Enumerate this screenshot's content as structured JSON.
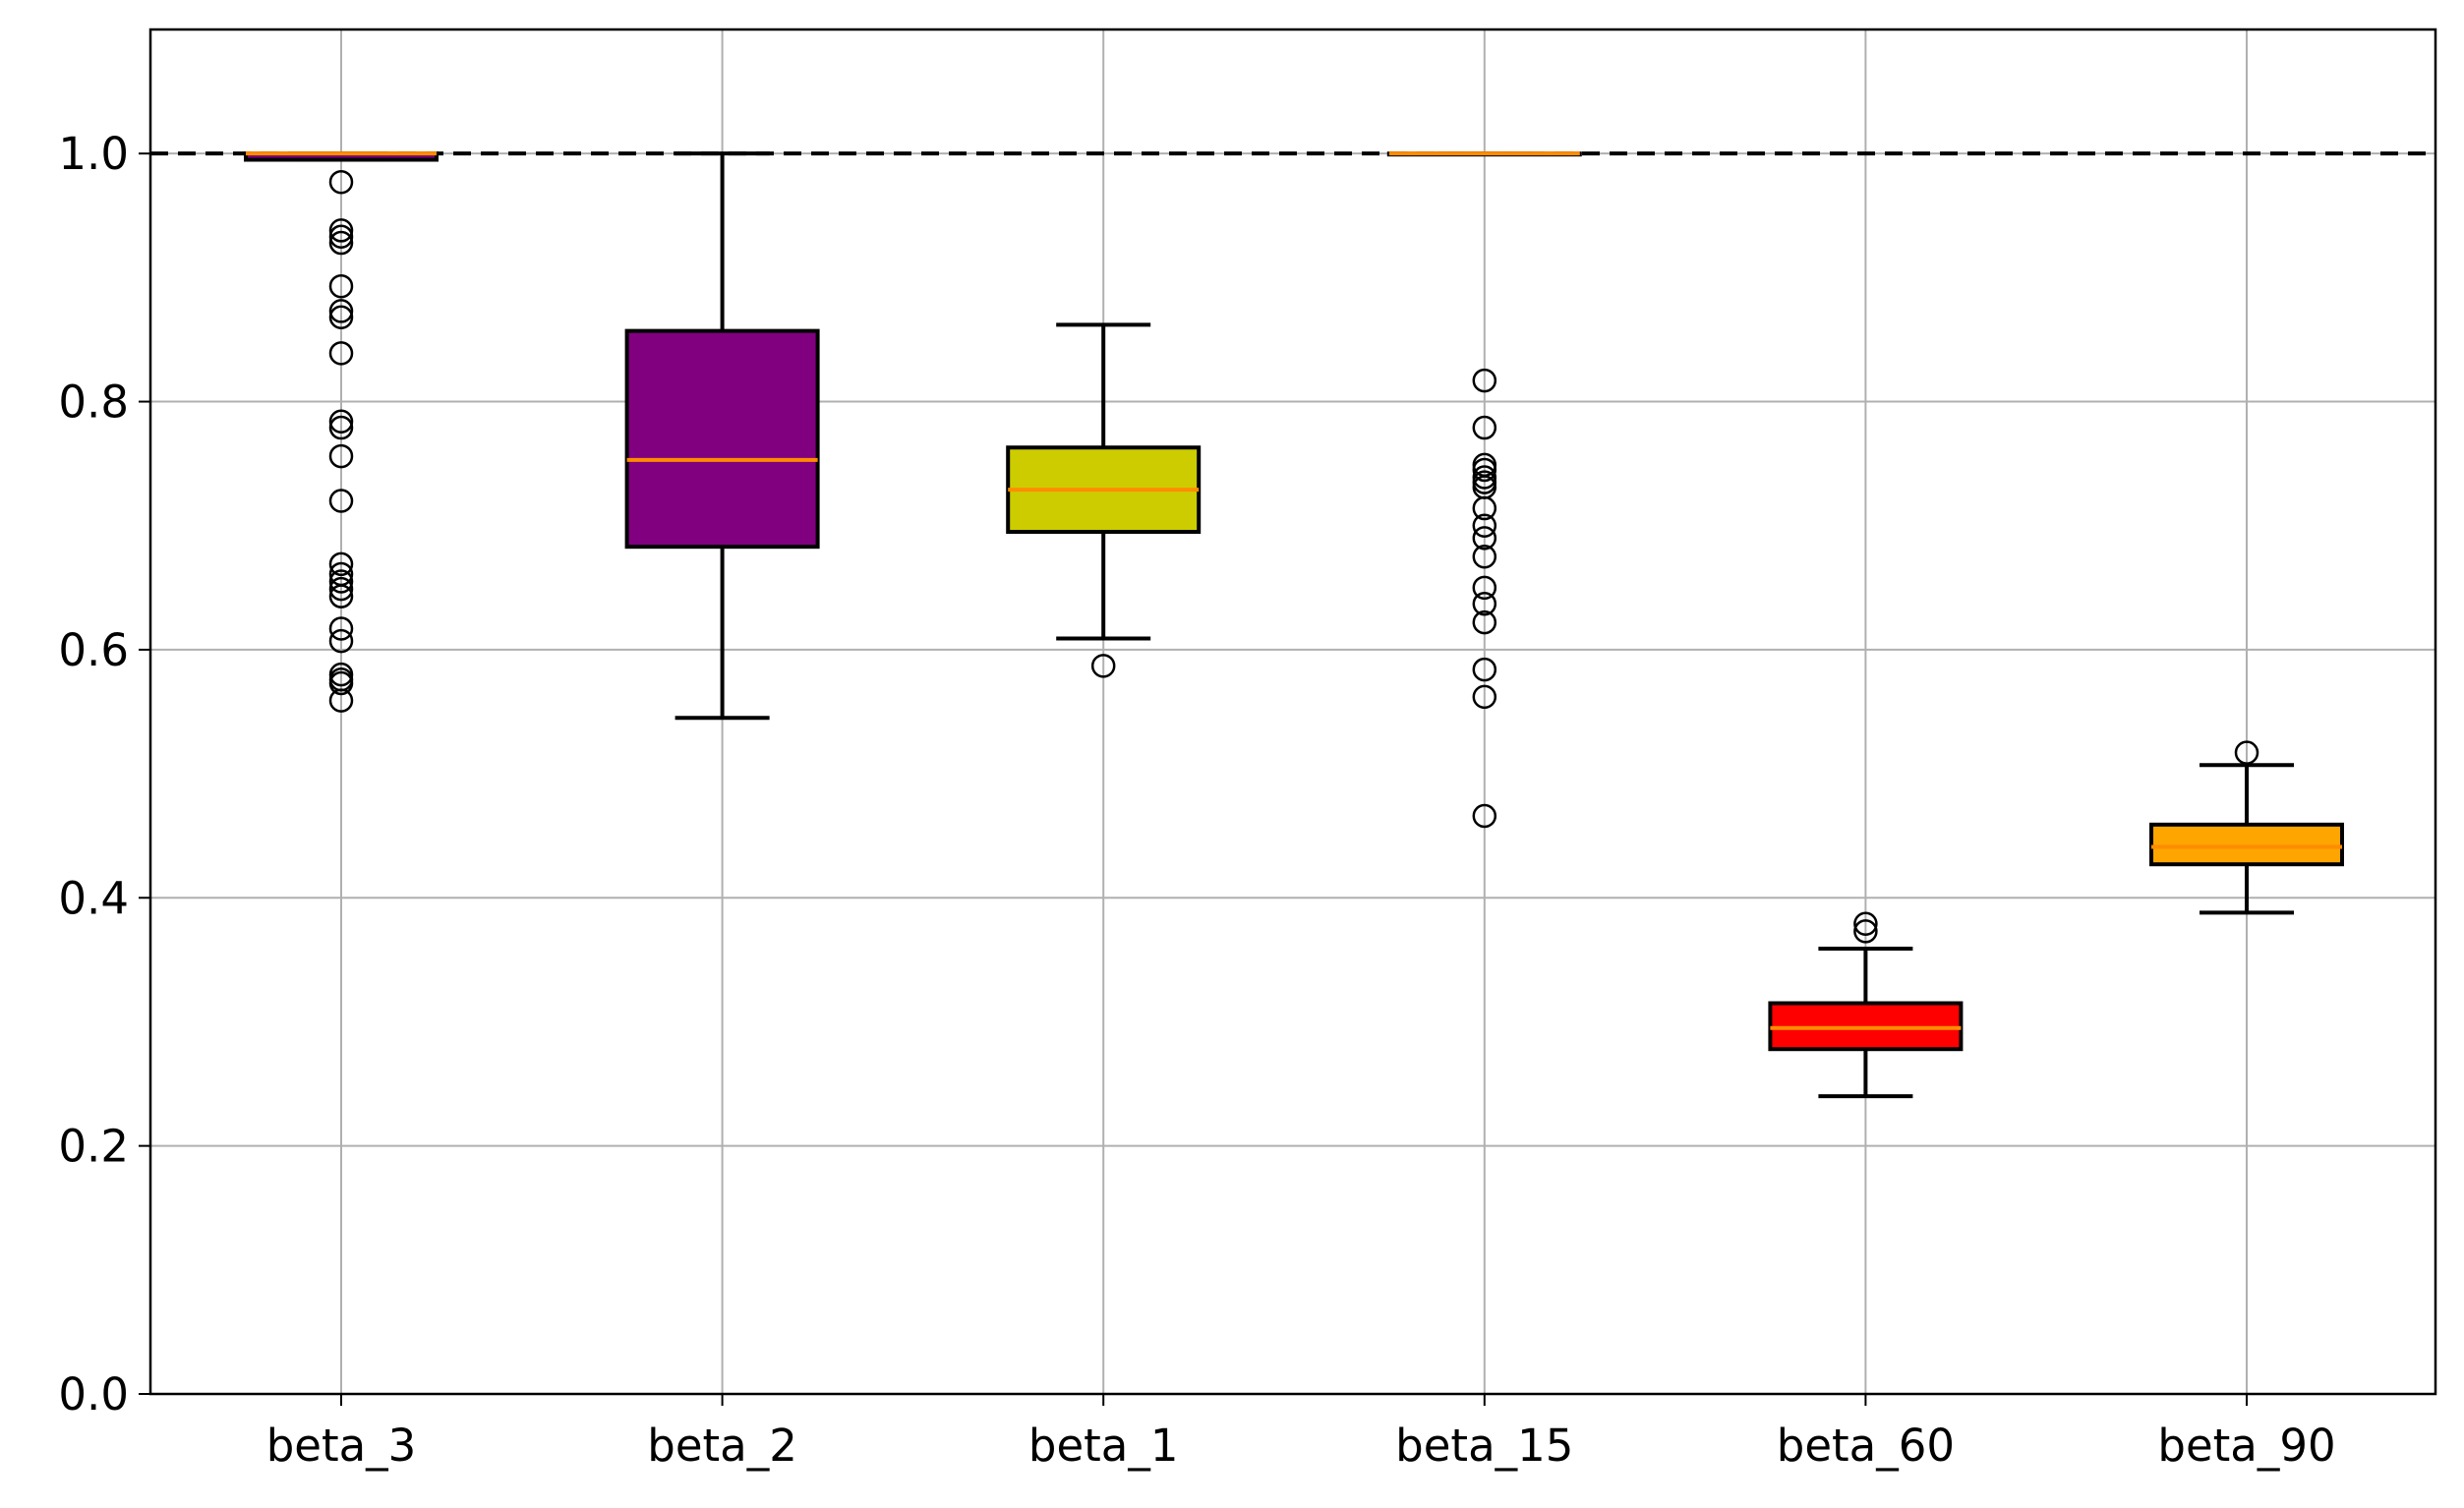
{
  "chart_data": {
    "type": "boxplot",
    "title": "",
    "xlabel": "",
    "ylabel": "",
    "ylim": [
      0.0,
      1.1
    ],
    "grid": true,
    "yticks": [
      "0.0",
      "0.2",
      "0.4",
      "0.6",
      "0.8",
      "1.0"
    ],
    "reference_line": {
      "y": 1.0,
      "style": "dashed",
      "color": "#000000"
    },
    "median_color": "#ff8c00",
    "categories": [
      "beta_3",
      "beta_2",
      "beta_1",
      "beta_15",
      "beta_60",
      "beta_90"
    ],
    "boxes": [
      {
        "label": "beta_3",
        "color": "#800080",
        "whisker_low": 0.995,
        "q1": 0.995,
        "median": 1.0,
        "q3": 1.0,
        "whisker_high": 1.0,
        "outliers": [
          0.977,
          0.938,
          0.933,
          0.928,
          0.893,
          0.873,
          0.868,
          0.839,
          0.784,
          0.779,
          0.756,
          0.72,
          0.669,
          0.661,
          0.655,
          0.649,
          0.643,
          0.617,
          0.607,
          0.58,
          0.576,
          0.573,
          0.559
        ]
      },
      {
        "label": "beta_2",
        "color": "#800080",
        "whisker_low": 0.545,
        "q1": 0.683,
        "median": 0.753,
        "q3": 0.857,
        "whisker_high": 1.0,
        "outliers": []
      },
      {
        "label": "beta_1",
        "color": "#cccc00",
        "whisker_low": 0.609,
        "q1": 0.695,
        "median": 0.729,
        "q3": 0.763,
        "whisker_high": 0.862,
        "outliers": [
          0.587
        ]
      },
      {
        "label": "beta_15",
        "color": "#800080",
        "whisker_low": 1.0,
        "q1": 1.0,
        "median": 1.0,
        "q3": 1.0,
        "whisker_high": 1.0,
        "outliers": [
          0.817,
          0.779,
          0.749,
          0.745,
          0.739,
          0.735,
          0.731,
          0.714,
          0.7,
          0.69,
          0.675,
          0.65,
          0.637,
          0.622,
          0.584,
          0.562,
          0.466
        ]
      },
      {
        "label": "beta_60",
        "color": "#ff0000",
        "whisker_low": 0.24,
        "q1": 0.278,
        "median": 0.295,
        "q3": 0.315,
        "whisker_high": 0.359,
        "outliers": [
          0.379,
          0.373
        ]
      },
      {
        "label": "beta_90",
        "color": "#ffa500",
        "whisker_low": 0.388,
        "q1": 0.427,
        "median": 0.441,
        "q3": 0.459,
        "whisker_high": 0.507,
        "outliers": [
          0.517
        ]
      }
    ]
  }
}
